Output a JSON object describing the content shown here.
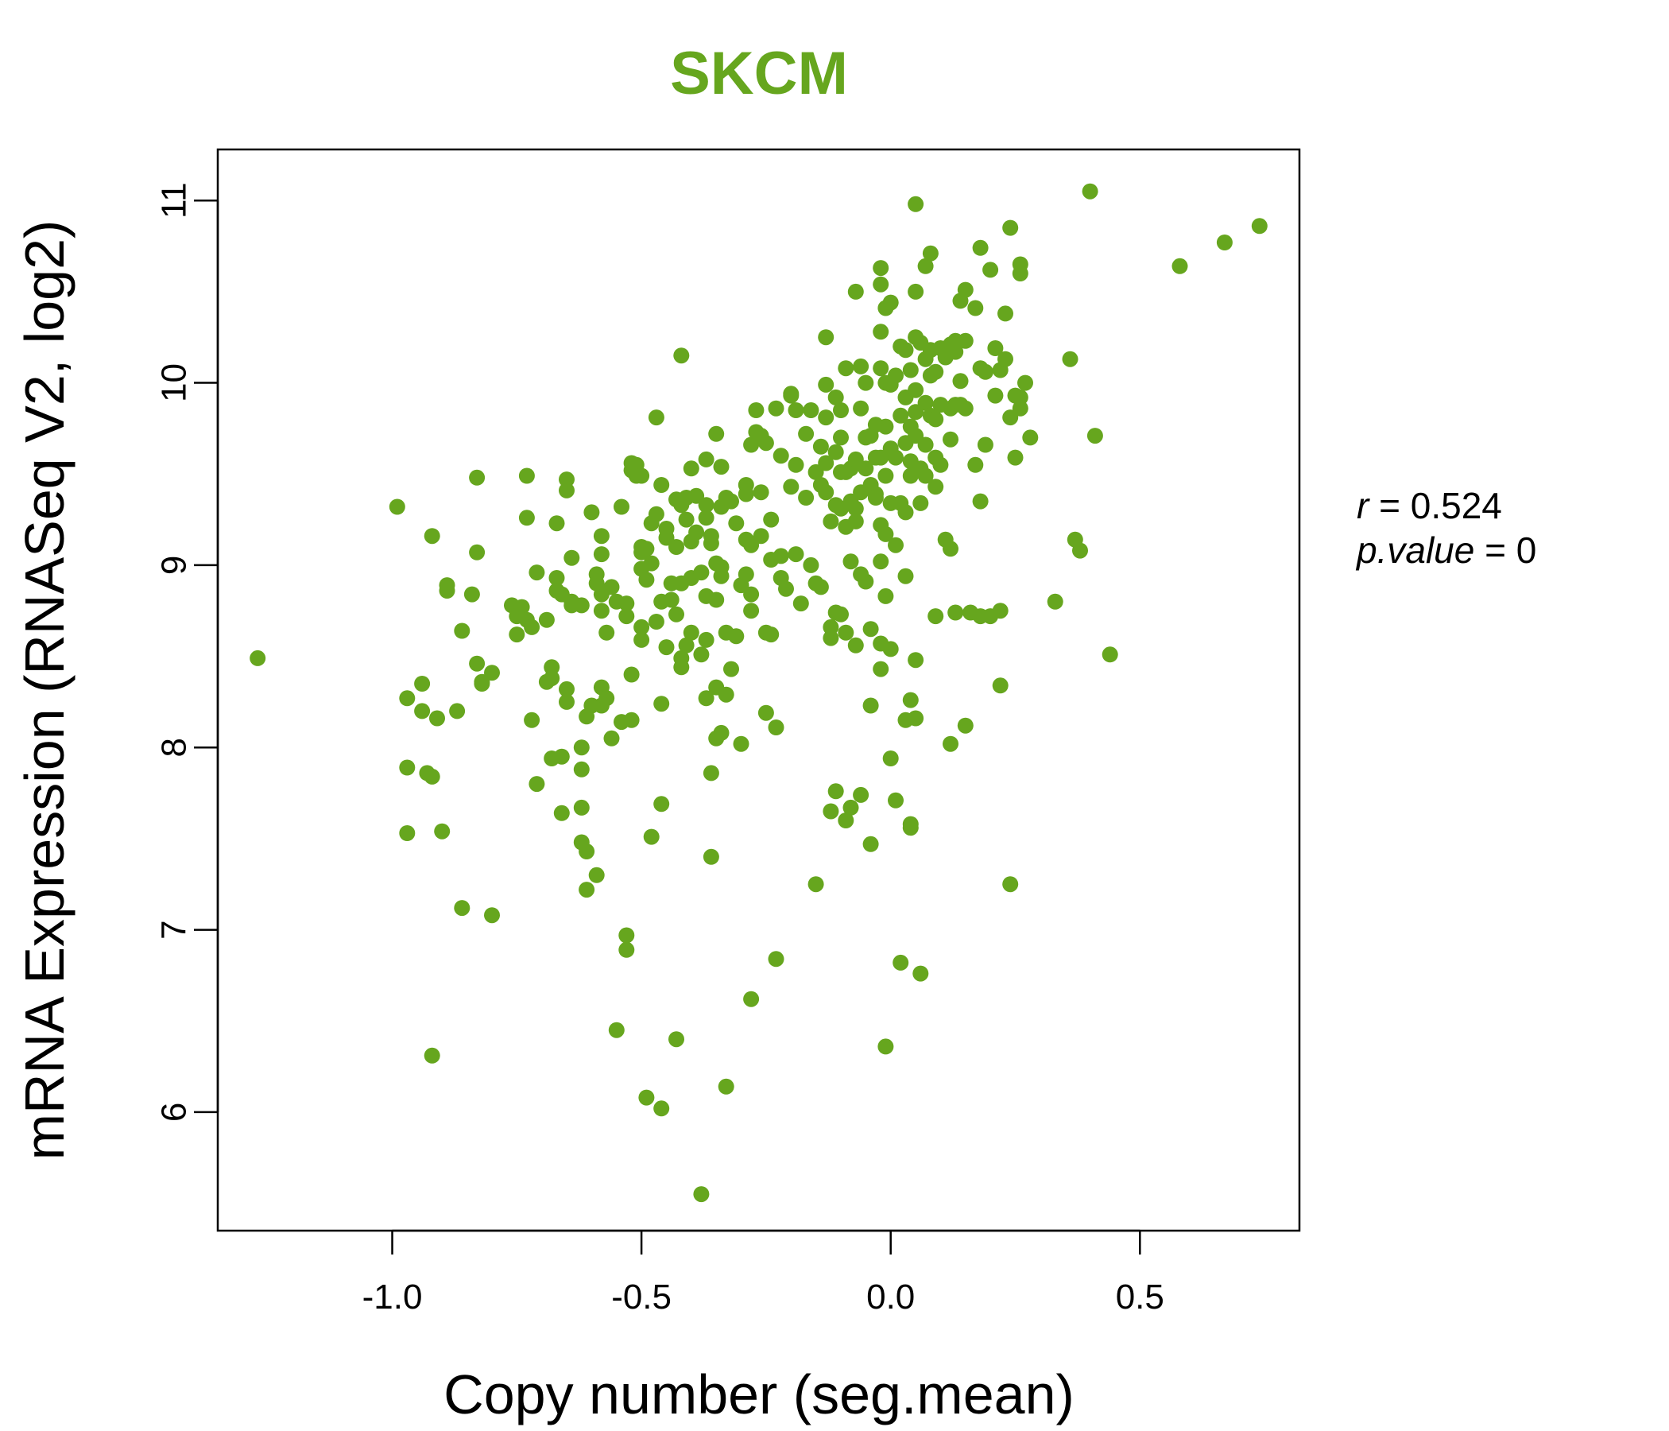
{
  "chart_data": {
    "type": "scatter",
    "title": "SKCM",
    "xlabel": "Copy number (seg.mean)",
    "ylabel": "mRNA Expression (RNASeq V2, log2)",
    "xlim": [
      -1.35,
      0.82
    ],
    "ylim": [
      5.35,
      11.28
    ],
    "xticks": [
      "-1.0",
      "-0.5",
      "0.0",
      "0.5"
    ],
    "xtick_values": [
      -1.0,
      -0.5,
      0.0,
      0.5
    ],
    "yticks": [
      "6",
      "7",
      "8",
      "9",
      "10",
      "11"
    ],
    "ytick_values": [
      6,
      7,
      8,
      9,
      10,
      11
    ],
    "point_color": "#66a61e",
    "stats": {
      "r_label": "r",
      "r_value": "0.524",
      "p_label": "p.value",
      "p_value": "0"
    },
    "points": [
      [
        -1.27,
        8.49
      ],
      [
        -0.99,
        9.32
      ],
      [
        -0.97,
        8.27
      ],
      [
        -0.97,
        7.89
      ],
      [
        -0.97,
        7.53
      ],
      [
        -0.94,
        8.35
      ],
      [
        -0.94,
        8.2
      ],
      [
        -0.93,
        7.86
      ],
      [
        -0.92,
        9.16
      ],
      [
        -0.92,
        7.84
      ],
      [
        -0.92,
        6.31
      ],
      [
        -0.91,
        8.16
      ],
      [
        -0.9,
        7.54
      ],
      [
        -0.89,
        8.89
      ],
      [
        -0.89,
        8.86
      ],
      [
        -0.87,
        8.2
      ],
      [
        -0.86,
        8.64
      ],
      [
        -0.86,
        7.12
      ],
      [
        -0.84,
        8.84
      ],
      [
        -0.83,
        9.48
      ],
      [
        -0.83,
        9.07
      ],
      [
        -0.83,
        8.46
      ],
      [
        -0.82,
        8.36
      ],
      [
        -0.82,
        8.35
      ],
      [
        -0.8,
        8.41
      ],
      [
        -0.8,
        7.08
      ],
      [
        -0.76,
        8.78
      ],
      [
        -0.75,
        8.72
      ],
      [
        -0.75,
        8.62
      ],
      [
        -0.74,
        8.77
      ],
      [
        -0.73,
        9.49
      ],
      [
        -0.73,
        9.26
      ],
      [
        -0.73,
        8.7
      ],
      [
        -0.72,
        8.66
      ],
      [
        -0.72,
        8.15
      ],
      [
        -0.71,
        8.96
      ],
      [
        -0.71,
        7.8
      ],
      [
        -0.69,
        8.7
      ],
      [
        -0.69,
        8.36
      ],
      [
        -0.68,
        8.44
      ],
      [
        -0.68,
        8.38
      ],
      [
        -0.68,
        7.94
      ],
      [
        -0.67,
        8.93
      ],
      [
        -0.67,
        9.23
      ],
      [
        -0.67,
        8.86
      ],
      [
        -0.66,
        8.84
      ],
      [
        -0.66,
        7.64
      ],
      [
        -0.66,
        7.95
      ],
      [
        -0.65,
        9.47
      ],
      [
        -0.65,
        9.41
      ],
      [
        -0.65,
        8.32
      ],
      [
        -0.65,
        8.25
      ],
      [
        -0.64,
        8.8
      ],
      [
        -0.64,
        8.78
      ],
      [
        -0.64,
        9.04
      ],
      [
        -0.62,
        8.78
      ],
      [
        -0.62,
        8.0
      ],
      [
        -0.62,
        7.88
      ],
      [
        -0.62,
        7.67
      ],
      [
        -0.62,
        7.48
      ],
      [
        -0.61,
        7.43
      ],
      [
        -0.61,
        7.22
      ],
      [
        -0.61,
        8.17
      ],
      [
        -0.6,
        9.29
      ],
      [
        -0.6,
        8.23
      ],
      [
        -0.59,
        7.3
      ],
      [
        -0.59,
        8.9
      ],
      [
        -0.59,
        8.95
      ],
      [
        -0.58,
        9.06
      ],
      [
        -0.58,
        8.84
      ],
      [
        -0.58,
        8.75
      ],
      [
        -0.58,
        8.33
      ],
      [
        -0.58,
        8.23
      ],
      [
        -0.58,
        9.16
      ],
      [
        -0.57,
        8.63
      ],
      [
        -0.57,
        8.27
      ],
      [
        -0.56,
        8.05
      ],
      [
        -0.56,
        8.88
      ],
      [
        -0.55,
        8.8
      ],
      [
        -0.55,
        6.45
      ],
      [
        -0.54,
        9.32
      ],
      [
        -0.54,
        8.14
      ],
      [
        -0.53,
        8.79
      ],
      [
        -0.53,
        6.97
      ],
      [
        -0.53,
        6.89
      ],
      [
        -0.53,
        8.72
      ],
      [
        -0.52,
        9.56
      ],
      [
        -0.52,
        9.52
      ],
      [
        -0.52,
        8.15
      ],
      [
        -0.52,
        8.4
      ],
      [
        -0.51,
        9.55
      ],
      [
        -0.51,
        9.49
      ],
      [
        -0.5,
        9.07
      ],
      [
        -0.5,
        8.98
      ],
      [
        -0.5,
        8.66
      ],
      [
        -0.5,
        8.59
      ],
      [
        -0.5,
        9.1
      ],
      [
        -0.5,
        9.49
      ],
      [
        -0.49,
        8.92
      ],
      [
        -0.49,
        6.08
      ],
      [
        -0.49,
        9.09
      ],
      [
        -0.48,
        9.01
      ],
      [
        -0.48,
        9.23
      ],
      [
        -0.48,
        7.51
      ],
      [
        -0.47,
        9.81
      ],
      [
        -0.47,
        9.28
      ],
      [
        -0.47,
        8.69
      ],
      [
        -0.46,
        8.24
      ],
      [
        -0.46,
        7.69
      ],
      [
        -0.46,
        9.44
      ],
      [
        -0.46,
        6.02
      ],
      [
        -0.46,
        8.8
      ],
      [
        -0.45,
        9.15
      ],
      [
        -0.45,
        8.55
      ],
      [
        -0.45,
        9.2
      ],
      [
        -0.44,
        8.9
      ],
      [
        -0.44,
        8.81
      ],
      [
        -0.43,
        9.1
      ],
      [
        -0.43,
        8.73
      ],
      [
        -0.43,
        9.36
      ],
      [
        -0.43,
        6.4
      ],
      [
        -0.42,
        8.9
      ],
      [
        -0.42,
        10.15
      ],
      [
        -0.42,
        9.33
      ],
      [
        -0.42,
        8.49
      ],
      [
        -0.42,
        8.44
      ],
      [
        -0.41,
        9.37
      ],
      [
        -0.41,
        9.25
      ],
      [
        -0.41,
        8.56
      ],
      [
        -0.4,
        8.93
      ],
      [
        -0.4,
        8.63
      ],
      [
        -0.4,
        9.53
      ],
      [
        -0.4,
        9.13
      ],
      [
        -0.39,
        9.38
      ],
      [
        -0.39,
        9.18
      ],
      [
        -0.38,
        8.51
      ],
      [
        -0.38,
        8.96
      ],
      [
        -0.38,
        5.55
      ],
      [
        -0.37,
        9.58
      ],
      [
        -0.37,
        9.33
      ],
      [
        -0.37,
        9.26
      ],
      [
        -0.37,
        8.83
      ],
      [
        -0.37,
        8.59
      ],
      [
        -0.37,
        8.27
      ],
      [
        -0.36,
        9.16
      ],
      [
        -0.36,
        9.12
      ],
      [
        -0.36,
        7.86
      ],
      [
        -0.36,
        7.4
      ],
      [
        -0.35,
        9.72
      ],
      [
        -0.35,
        8.81
      ],
      [
        -0.35,
        9.01
      ],
      [
        -0.35,
        8.33
      ],
      [
        -0.35,
        8.05
      ],
      [
        -0.34,
        9.32
      ],
      [
        -0.34,
        9.54
      ],
      [
        -0.34,
        8.99
      ],
      [
        -0.34,
        8.94
      ],
      [
        -0.34,
        8.08
      ],
      [
        -0.33,
        9.37
      ],
      [
        -0.33,
        8.63
      ],
      [
        -0.33,
        8.29
      ],
      [
        -0.33,
        6.14
      ],
      [
        -0.32,
        9.35
      ],
      [
        -0.32,
        8.43
      ],
      [
        -0.31,
        9.23
      ],
      [
        -0.31,
        8.61
      ],
      [
        -0.3,
        8.89
      ],
      [
        -0.3,
        8.02
      ],
      [
        -0.29,
        9.44
      ],
      [
        -0.29,
        9.39
      ],
      [
        -0.29,
        9.14
      ],
      [
        -0.29,
        8.95
      ],
      [
        -0.28,
        8.84
      ],
      [
        -0.28,
        9.11
      ],
      [
        -0.28,
        8.75
      ],
      [
        -0.28,
        9.66
      ],
      [
        -0.28,
        6.62
      ],
      [
        -0.27,
        9.85
      ],
      [
        -0.27,
        9.73
      ],
      [
        -0.26,
        9.4
      ],
      [
        -0.26,
        9.16
      ],
      [
        -0.26,
        9.71
      ],
      [
        -0.25,
        8.19
      ],
      [
        -0.25,
        9.67
      ],
      [
        -0.25,
        8.63
      ],
      [
        -0.24,
        9.03
      ],
      [
        -0.24,
        8.62
      ],
      [
        -0.24,
        9.25
      ],
      [
        -0.23,
        9.86
      ],
      [
        -0.23,
        8.11
      ],
      [
        -0.23,
        6.84
      ],
      [
        -0.22,
        9.6
      ],
      [
        -0.22,
        9.05
      ],
      [
        -0.22,
        8.93
      ],
      [
        -0.21,
        8.87
      ],
      [
        -0.2,
        9.94
      ],
      [
        -0.2,
        9.93
      ],
      [
        -0.2,
        9.43
      ],
      [
        -0.19,
        9.06
      ],
      [
        -0.19,
        9.55
      ],
      [
        -0.19,
        9.85
      ],
      [
        -0.18,
        8.79
      ],
      [
        -0.17,
        9.72
      ],
      [
        -0.17,
        9.37
      ],
      [
        -0.16,
        9.0
      ],
      [
        -0.16,
        9.85
      ],
      [
        -0.15,
        7.25
      ],
      [
        -0.15,
        8.9
      ],
      [
        -0.15,
        9.51
      ],
      [
        -0.14,
        9.65
      ],
      [
        -0.14,
        9.44
      ],
      [
        -0.14,
        8.88
      ],
      [
        -0.13,
        10.25
      ],
      [
        -0.13,
        9.99
      ],
      [
        -0.13,
        9.81
      ],
      [
        -0.13,
        9.56
      ],
      [
        -0.13,
        9.4
      ],
      [
        -0.12,
        9.24
      ],
      [
        -0.12,
        8.6
      ],
      [
        -0.12,
        8.66
      ],
      [
        -0.12,
        7.65
      ],
      [
        -0.11,
        9.92
      ],
      [
        -0.11,
        9.62
      ],
      [
        -0.11,
        9.33
      ],
      [
        -0.11,
        8.74
      ],
      [
        -0.11,
        7.76
      ],
      [
        -0.1,
        9.85
      ],
      [
        -0.1,
        9.7
      ],
      [
        -0.1,
        9.51
      ],
      [
        -0.1,
        9.31
      ],
      [
        -0.1,
        8.73
      ],
      [
        -0.09,
        10.08
      ],
      [
        -0.09,
        9.51
      ],
      [
        -0.09,
        9.21
      ],
      [
        -0.09,
        8.63
      ],
      [
        -0.09,
        7.6
      ],
      [
        -0.08,
        9.53
      ],
      [
        -0.08,
        9.35
      ],
      [
        -0.08,
        9.02
      ],
      [
        -0.08,
        7.67
      ],
      [
        -0.07,
        10.5
      ],
      [
        -0.07,
        9.58
      ],
      [
        -0.07,
        9.31
      ],
      [
        -0.07,
        9.24
      ],
      [
        -0.07,
        8.56
      ],
      [
        -0.06,
        10.09
      ],
      [
        -0.06,
        9.86
      ],
      [
        -0.06,
        9.4
      ],
      [
        -0.06,
        8.95
      ],
      [
        -0.06,
        7.74
      ],
      [
        -0.05,
        10.0
      ],
      [
        -0.05,
        9.7
      ],
      [
        -0.05,
        9.53
      ],
      [
        -0.05,
        8.91
      ],
      [
        -0.04,
        9.71
      ],
      [
        -0.04,
        9.44
      ],
      [
        -0.04,
        8.65
      ],
      [
        -0.04,
        8.23
      ],
      [
        -0.04,
        7.47
      ],
      [
        -0.03,
        9.39
      ],
      [
        -0.03,
        9.77
      ],
      [
        -0.03,
        9.59
      ],
      [
        -0.03,
        9.37
      ],
      [
        -0.02,
        10.63
      ],
      [
        -0.02,
        10.54
      ],
      [
        -0.02,
        10.28
      ],
      [
        -0.02,
        10.08
      ],
      [
        -0.02,
        9.59
      ],
      [
        -0.02,
        9.22
      ],
      [
        -0.02,
        9.02
      ],
      [
        -0.02,
        8.57
      ],
      [
        -0.02,
        8.43
      ],
      [
        -0.01,
        10.41
      ],
      [
        -0.01,
        10.0
      ],
      [
        -0.01,
        9.76
      ],
      [
        -0.01,
        9.49
      ],
      [
        -0.01,
        9.17
      ],
      [
        -0.01,
        8.83
      ],
      [
        -0.01,
        6.36
      ],
      [
        0.0,
        10.44
      ],
      [
        0.0,
        9.99
      ],
      [
        0.0,
        9.64
      ],
      [
        0.0,
        9.34
      ],
      [
        0.0,
        8.54
      ],
      [
        0.0,
        7.94
      ],
      [
        0.01,
        10.04
      ],
      [
        0.01,
        9.59
      ],
      [
        0.01,
        9.11
      ],
      [
        0.01,
        7.71
      ],
      [
        0.02,
        10.2
      ],
      [
        0.02,
        9.82
      ],
      [
        0.02,
        9.34
      ],
      [
        0.02,
        6.82
      ],
      [
        0.03,
        10.18
      ],
      [
        0.03,
        9.92
      ],
      [
        0.03,
        9.67
      ],
      [
        0.03,
        9.29
      ],
      [
        0.03,
        8.94
      ],
      [
        0.03,
        8.15
      ],
      [
        0.04,
        10.07
      ],
      [
        0.04,
        9.76
      ],
      [
        0.04,
        9.57
      ],
      [
        0.04,
        9.49
      ],
      [
        0.04,
        8.26
      ],
      [
        0.04,
        7.58
      ],
      [
        0.04,
        7.56
      ],
      [
        0.05,
        10.98
      ],
      [
        0.05,
        10.5
      ],
      [
        0.05,
        10.25
      ],
      [
        0.05,
        9.96
      ],
      [
        0.05,
        9.84
      ],
      [
        0.05,
        9.71
      ],
      [
        0.05,
        8.48
      ],
      [
        0.05,
        8.16
      ],
      [
        0.06,
        10.22
      ],
      [
        0.06,
        9.53
      ],
      [
        0.06,
        9.34
      ],
      [
        0.06,
        6.76
      ],
      [
        0.07,
        10.64
      ],
      [
        0.07,
        10.13
      ],
      [
        0.07,
        9.89
      ],
      [
        0.07,
        9.66
      ],
      [
        0.07,
        9.49
      ],
      [
        0.08,
        10.71
      ],
      [
        0.08,
        10.18
      ],
      [
        0.08,
        10.04
      ],
      [
        0.08,
        9.82
      ],
      [
        0.09,
        10.06
      ],
      [
        0.09,
        9.8
      ],
      [
        0.09,
        9.59
      ],
      [
        0.09,
        9.43
      ],
      [
        0.09,
        8.72
      ],
      [
        0.1,
        10.19
      ],
      [
        0.1,
        9.88
      ],
      [
        0.1,
        9.55
      ],
      [
        0.11,
        10.14
      ],
      [
        0.11,
        9.14
      ],
      [
        0.12,
        10.21
      ],
      [
        0.12,
        9.86
      ],
      [
        0.12,
        9.69
      ],
      [
        0.12,
        9.09
      ],
      [
        0.12,
        8.02
      ],
      [
        0.13,
        10.23
      ],
      [
        0.13,
        10.17
      ],
      [
        0.13,
        9.88
      ],
      [
        0.13,
        8.74
      ],
      [
        0.14,
        10.45
      ],
      [
        0.14,
        10.01
      ],
      [
        0.14,
        9.88
      ],
      [
        0.15,
        10.51
      ],
      [
        0.15,
        10.23
      ],
      [
        0.15,
        9.86
      ],
      [
        0.15,
        8.12
      ],
      [
        0.16,
        8.74
      ],
      [
        0.17,
        10.41
      ],
      [
        0.17,
        9.55
      ],
      [
        0.18,
        10.74
      ],
      [
        0.18,
        10.08
      ],
      [
        0.18,
        9.35
      ],
      [
        0.18,
        8.72
      ],
      [
        0.19,
        10.06
      ],
      [
        0.19,
        9.66
      ],
      [
        0.2,
        10.62
      ],
      [
        0.2,
        8.72
      ],
      [
        0.21,
        10.19
      ],
      [
        0.21,
        9.93
      ],
      [
        0.22,
        10.07
      ],
      [
        0.22,
        8.34
      ],
      [
        0.22,
        8.75
      ],
      [
        0.23,
        10.38
      ],
      [
        0.23,
        10.13
      ],
      [
        0.24,
        10.85
      ],
      [
        0.24,
        9.81
      ],
      [
        0.24,
        7.25
      ],
      [
        0.25,
        9.93
      ],
      [
        0.25,
        9.59
      ],
      [
        0.26,
        10.65
      ],
      [
        0.26,
        10.6
      ],
      [
        0.26,
        9.92
      ],
      [
        0.26,
        9.86
      ],
      [
        0.27,
        10.0
      ],
      [
        0.28,
        9.7
      ],
      [
        0.33,
        8.8
      ],
      [
        0.36,
        10.13
      ],
      [
        0.37,
        9.14
      ],
      [
        0.38,
        9.08
      ],
      [
        0.4,
        11.05
      ],
      [
        0.41,
        9.71
      ],
      [
        0.44,
        8.51
      ],
      [
        0.58,
        10.64
      ],
      [
        0.67,
        10.77
      ],
      [
        0.74,
        10.86
      ]
    ]
  }
}
